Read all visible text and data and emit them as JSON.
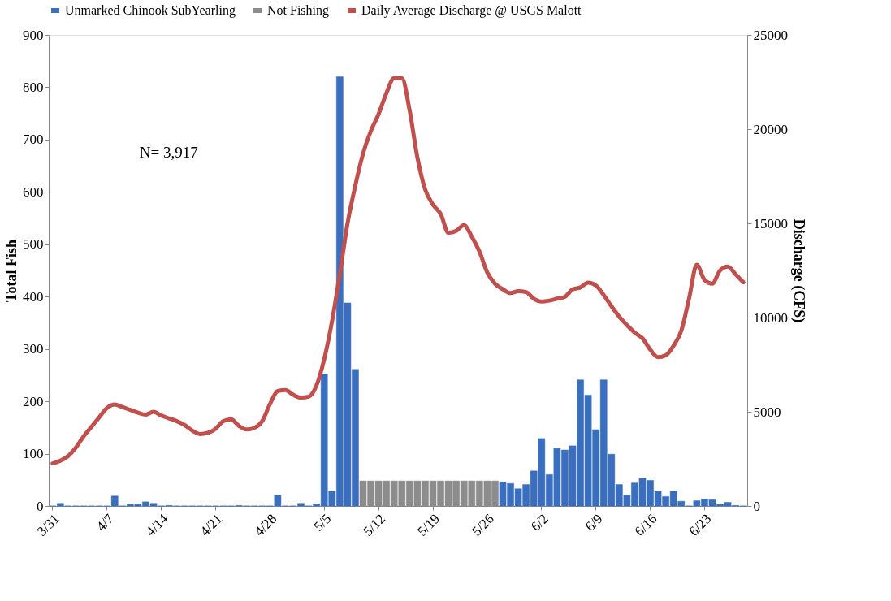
{
  "chart_data": {
    "type": "bar",
    "categories": [
      "3/31",
      null,
      null,
      null,
      null,
      null,
      null,
      "4/7",
      null,
      null,
      null,
      null,
      null,
      null,
      "4/14",
      null,
      null,
      null,
      null,
      null,
      null,
      "4/21",
      null,
      null,
      null,
      null,
      null,
      null,
      "4/28",
      null,
      null,
      null,
      null,
      null,
      null,
      "5/5",
      null,
      null,
      null,
      null,
      null,
      null,
      "5/12",
      null,
      null,
      null,
      null,
      null,
      null,
      "5/19",
      null,
      null,
      null,
      null,
      null,
      null,
      "5/26",
      null,
      null,
      null,
      null,
      null,
      null,
      "6/2",
      null,
      null,
      null,
      null,
      null,
      null,
      "6/9",
      null,
      null,
      null,
      null,
      null,
      null,
      "6/16",
      null,
      null,
      null,
      null,
      null,
      null,
      "6/23",
      null,
      null,
      null,
      null,
      null
    ],
    "series": [
      {
        "name": "Unmarked Chinook SubYearling",
        "color": "#3a6fbf",
        "values": [
          0,
          5,
          0,
          0,
          0,
          0,
          0,
          0,
          19,
          0,
          3,
          4,
          8,
          5,
          0,
          1,
          0,
          0,
          0,
          0,
          0,
          0,
          0,
          0,
          1,
          0,
          0,
          0,
          0,
          21,
          0,
          0,
          5,
          0,
          4,
          252,
          28,
          820,
          388,
          261,
          null,
          null,
          null,
          null,
          null,
          null,
          null,
          null,
          null,
          null,
          null,
          null,
          null,
          null,
          null,
          null,
          null,
          null,
          46,
          43,
          33,
          41,
          67,
          129,
          60,
          110,
          107,
          115,
          241,
          212,
          146,
          241,
          99,
          41,
          21,
          44,
          53,
          49,
          28,
          18,
          28,
          9,
          0,
          10,
          13,
          12,
          4,
          7,
          1,
          0
        ]
      },
      {
        "name": "Not Fishing",
        "color": "#8c8c8c",
        "values": [
          null,
          null,
          null,
          null,
          null,
          null,
          null,
          null,
          null,
          null,
          null,
          null,
          null,
          null,
          null,
          null,
          null,
          null,
          null,
          null,
          null,
          null,
          null,
          null,
          null,
          null,
          null,
          null,
          null,
          null,
          null,
          null,
          null,
          null,
          null,
          null,
          null,
          null,
          null,
          null,
          48,
          48,
          48,
          48,
          48,
          48,
          48,
          48,
          48,
          48,
          48,
          48,
          48,
          48,
          48,
          48,
          48,
          48,
          null,
          null,
          null,
          null,
          null,
          null,
          null,
          null,
          null,
          null,
          null,
          null,
          null,
          null,
          null,
          null,
          null,
          null,
          null,
          null,
          null,
          null,
          null,
          null,
          null,
          null,
          null,
          null,
          null,
          null,
          null,
          null
        ]
      },
      {
        "name": "Daily Average Discharge @ USGS Malott",
        "type": "line",
        "axis": "y2",
        "color": "#c0504d",
        "values": [
          2260,
          2400,
          2650,
          3100,
          3700,
          4200,
          4700,
          5200,
          5390,
          5250,
          5100,
          4950,
          4850,
          5000,
          4800,
          4650,
          4500,
          4300,
          4000,
          3820,
          3880,
          4100,
          4500,
          4600,
          4250,
          4060,
          4150,
          4500,
          5400,
          6100,
          6150,
          5900,
          5750,
          5800,
          6400,
          7800,
          9800,
          12300,
          15000,
          17000,
          18700,
          19900,
          20800,
          21900,
          22700,
          22700,
          21000,
          18500,
          16800,
          16000,
          15500,
          14500,
          14600,
          14900,
          14300,
          13500,
          12400,
          11800,
          11500,
          11300,
          11400,
          11350,
          11000,
          10850,
          10900,
          11000,
          11100,
          11500,
          11600,
          11850,
          11700,
          11200,
          10600,
          10050,
          9600,
          9200,
          8900,
          8300,
          7900,
          8000,
          8500,
          9300,
          11000,
          12800,
          12000,
          11800,
          12500,
          12700,
          12300,
          11870
        ]
      }
    ],
    "ylabel": "Total Fish",
    "y2label": "Discharge (CFS)",
    "ylim": [
      0,
      900
    ],
    "yticks": [
      0,
      100,
      200,
      300,
      400,
      500,
      600,
      700,
      800,
      900
    ],
    "y2lim": [
      0,
      25000
    ],
    "y2ticks": [
      0,
      5000,
      10000,
      15000,
      20000,
      25000
    ],
    "annotations": [
      "N= 3,917"
    ],
    "legend": "top",
    "grid": false,
    "marker": "none",
    "line_style": "solid"
  }
}
